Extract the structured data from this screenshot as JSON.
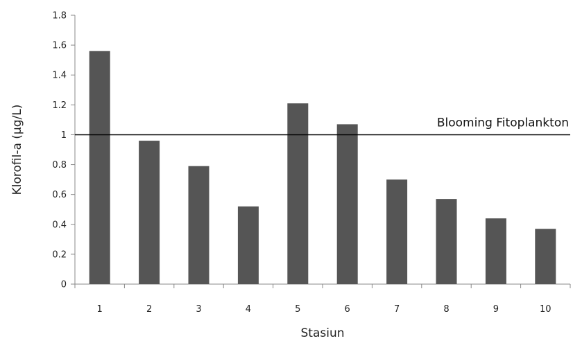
{
  "chart_data": {
    "type": "bar",
    "categories": [
      "1",
      "2",
      "3",
      "4",
      "5",
      "6",
      "7",
      "8",
      "9",
      "10"
    ],
    "values": [
      1.56,
      0.96,
      0.79,
      0.52,
      1.21,
      1.07,
      0.7,
      0.57,
      0.44,
      0.37
    ],
    "title": "",
    "xlabel": "Stasiun",
    "ylabel": "Klorofil-a (µg/L)",
    "ylim": [
      0,
      1.8
    ],
    "yticks": [
      0,
      0.2,
      0.4,
      0.6,
      0.8,
      1,
      1.2,
      1.4,
      1.6,
      1.8
    ],
    "ytick_labels": [
      "0",
      "0.2",
      "0.4",
      "0.6",
      "0.8",
      "1",
      "1.2",
      "1.4",
      "1.6",
      "1.8"
    ],
    "reference_line": {
      "value": 1,
      "label": "Blooming Fitoplankton"
    },
    "grid": false,
    "legend": "none",
    "bar_color": "#555555"
  }
}
